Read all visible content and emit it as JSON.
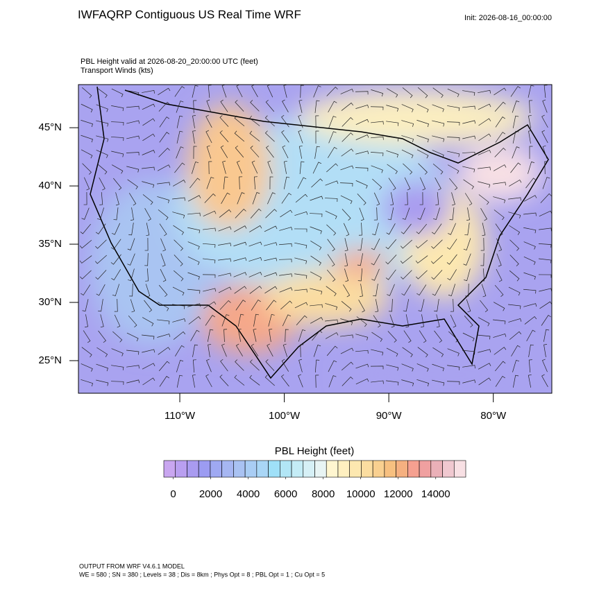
{
  "chart_data": {
    "type": "map",
    "title": "IWFAQRP Contiguous US Real Time WRF",
    "init": "Init: 2026-08-16_00:00:00",
    "subtitle": "PBL Height valid at 2026-08-20_20:00:00 UTC   (feet)",
    "subtitle2": "Transport Winds   (kts)",
    "xlim": [
      -119.7,
      -74.4
    ],
    "ylim": [
      22.2,
      48.7
    ],
    "xticks": [
      {
        "value": -110,
        "label": "110°W"
      },
      {
        "value": -100,
        "label": "100°W"
      },
      {
        "value": -90,
        "label": "90°W"
      },
      {
        "value": -80,
        "label": "80°W"
      }
    ],
    "yticks": [
      {
        "value": 25,
        "label": "25°N"
      },
      {
        "value": 30,
        "label": "30°N"
      },
      {
        "value": 35,
        "label": "35°N"
      },
      {
        "value": 40,
        "label": "40°N"
      },
      {
        "value": 45,
        "label": "45°N"
      }
    ],
    "colorbar": {
      "title": "PBL Height  (feet)",
      "lim": [
        -500,
        15600
      ],
      "ticks": [
        0,
        2000,
        4000,
        6000,
        8000,
        10000,
        12000,
        14000
      ],
      "colors": [
        "#c9a6f0",
        "#b99ff0",
        "#a99bf0",
        "#9c9cf2",
        "#9fa9f2",
        "#a6b6f2",
        "#a9c2f2",
        "#a9cdf4",
        "#a9d6f6",
        "#9fe0f8",
        "#b2e6f6",
        "#c4ecf6",
        "#d6f0f6",
        "#e8f4f4",
        "#fff6d0",
        "#fff0c0",
        "#fde8b0",
        "#fbdda0",
        "#f9d090",
        "#f7c080",
        "#f5b080",
        "#f5a090",
        "#f0a0a0",
        "#eab0b8",
        "#f0c8d0",
        "#f8e0e4"
      ]
    },
    "footer": [
      "OUTPUT FROM WRF V4.6.1 MODEL",
      "WE = 580 ; SN = 380 ; Levels = 38 ; Dis = 8km ; Phys Opt = 8 ; PBL Opt = 1 ; Cu Opt = 5"
    ]
  }
}
